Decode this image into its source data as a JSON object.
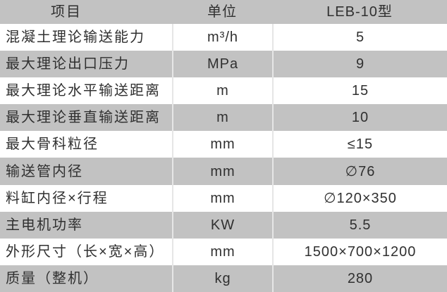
{
  "table": {
    "title": "LEB-10 spec table",
    "colors": {
      "header_bg": "#c2c2c2",
      "row_alt_bg": "#c2c2c2",
      "row_bg": "#ffffff",
      "divider": "#e6e6e6",
      "text": "#303030"
    },
    "columns": [
      {
        "label": "项目"
      },
      {
        "label": "单位"
      },
      {
        "label": "LEB-10型"
      }
    ],
    "rows": [
      {
        "item": "混凝土理论输送能力",
        "unit": "m³/h",
        "value": "5"
      },
      {
        "item": "最大理论出口压力",
        "unit": "MPa",
        "value": "9"
      },
      {
        "item": "最大理论水平输送距离",
        "unit": "m",
        "value": "15"
      },
      {
        "item": "最大理论垂直输送距离",
        "unit": "m",
        "value": "10"
      },
      {
        "item": "最大骨科粒径",
        "unit": "mm",
        "value": "≤15"
      },
      {
        "item": "输送管内径",
        "unit": "mm",
        "value": "∅76"
      },
      {
        "item": "料缸内径×行程",
        "unit": "mm",
        "value": "∅120×350"
      },
      {
        "item": "主电机功率",
        "unit": "KW",
        "value": "5.5"
      },
      {
        "item": "外形尺寸（长×宽×高）",
        "unit": "mm",
        "value": "1500×700×1200"
      },
      {
        "item": "质量（整机）",
        "unit": "kg",
        "value": "280"
      }
    ]
  }
}
